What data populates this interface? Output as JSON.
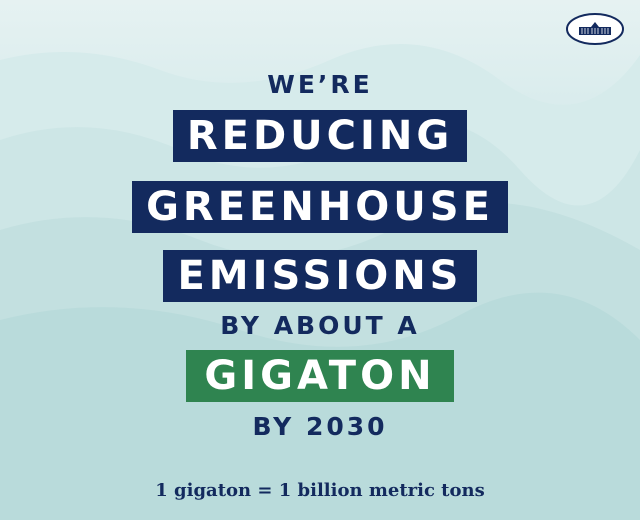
{
  "colors": {
    "navy": "#132a5e",
    "green": "#2f8450",
    "background": "#cde7e7"
  },
  "logo": {
    "icon": "white-house-seal-icon"
  },
  "headline": {
    "line1": "WE’RE",
    "line2": "REDUCING",
    "line3": "GREENHOUSE",
    "line4": "EMISSIONS",
    "line5": "BY ABOUT A",
    "line6": "GIGATON",
    "line7": "BY 2030"
  },
  "footnote": "1 gigaton = 1 billion metric tons"
}
